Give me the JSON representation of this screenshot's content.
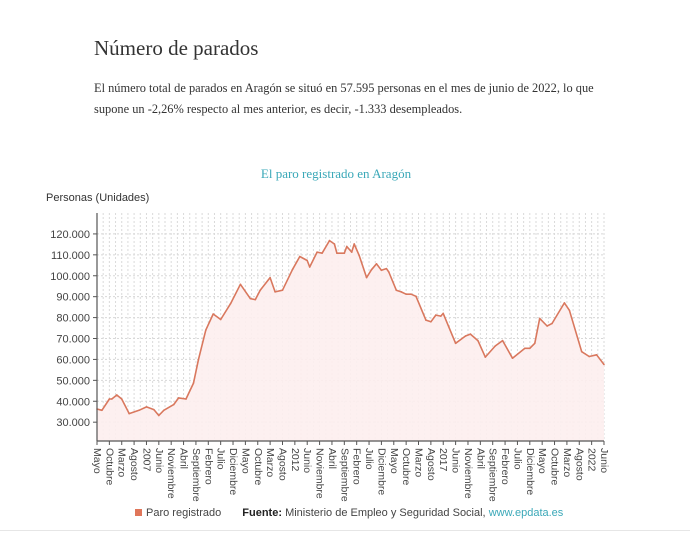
{
  "header": {
    "title": "Número de parados",
    "paragraph": "El número total de parados en Aragón se situó en 57.595 personas en el mes de junio de 2022, lo que supone un -2,26% respecto al mes anterior, es decir, -1.333 desempleados."
  },
  "footer": {
    "legend_label": "Paro registrado",
    "source_label": "Fuente:",
    "source_text": " Ministerio de Empleo y Seguridad Social, ",
    "source_link": "www.epdata.es"
  },
  "chart_data": {
    "type": "area",
    "title": "El paro registrado en Aragón",
    "ylabel": "Personas (Unidades)",
    "xlabel": "",
    "ylim": [
      21000,
      130000
    ],
    "yticks": [
      30000,
      40000,
      50000,
      60000,
      70000,
      80000,
      90000,
      100000,
      110000,
      120000
    ],
    "ytick_labels": [
      "30.000",
      "40.000",
      "50.000",
      "60.000",
      "70.000",
      "80.000",
      "90.000",
      "100.000",
      "110.000",
      "120.000"
    ],
    "xrange": [
      "2005-05",
      "2022-06"
    ],
    "xtick_step_months": 5,
    "xtick_labels": [
      "Mayo",
      "Octubre",
      "Marzo",
      "Agosto",
      "2007",
      "Junio",
      "Noviembre",
      "Abril",
      "Septiembre",
      "Febrero",
      "Julio",
      "Diciembre",
      "Mayo",
      "Octubre",
      "Marzo",
      "Agosto",
      "2012",
      "Junio",
      "Noviembre",
      "Abril",
      "Septiembre",
      "Febrero",
      "Julio",
      "Diciembre",
      "Mayo",
      "Octubre",
      "Marzo",
      "Agosto",
      "2017",
      "Junio",
      "Noviembre",
      "Abril",
      "Septiembre",
      "Febrero",
      "Julio",
      "Diciembre",
      "Mayo",
      "Octubre",
      "Marzo",
      "Agosto",
      "2022",
      "Junio"
    ],
    "grid": true,
    "legend_position": "bottom",
    "colors": {
      "line": "#d9785e",
      "fill": "#fdeeee",
      "title": "#3aa8b8"
    },
    "series": [
      {
        "name": "Paro registrado",
        "x": [
          "2005-05",
          "2005-07",
          "2005-10",
          "2005-11",
          "2006-01",
          "2006-03",
          "2006-06",
          "2006-10",
          "2007-01",
          "2007-04",
          "2007-06",
          "2007-08",
          "2007-12",
          "2008-02",
          "2008-05",
          "2008-08",
          "2008-10",
          "2009-01",
          "2009-04",
          "2009-07",
          "2009-11",
          "2010-03",
          "2010-07",
          "2010-09",
          "2010-11",
          "2011-03",
          "2011-05",
          "2011-08",
          "2011-12",
          "2012-03",
          "2012-06",
          "2012-07",
          "2012-10",
          "2012-12",
          "2013-03",
          "2013-05",
          "2013-06",
          "2013-09",
          "2013-10",
          "2013-12",
          "2014-01",
          "2014-03",
          "2014-06",
          "2014-08",
          "2014-10",
          "2014-12",
          "2015-02",
          "2015-03",
          "2015-06",
          "2015-08",
          "2015-10",
          "2015-12",
          "2016-02",
          "2016-06",
          "2016-08",
          "2016-10",
          "2016-12",
          "2017-01",
          "2017-06",
          "2017-10",
          "2017-12",
          "2018-03",
          "2018-06",
          "2018-10",
          "2019-01",
          "2019-05",
          "2019-10",
          "2019-12",
          "2020-02",
          "2020-04",
          "2020-07",
          "2020-09",
          "2021-02",
          "2021-04",
          "2021-09",
          "2021-12",
          "2022-03",
          "2022-06"
        ],
        "values": [
          36300,
          35700,
          41100,
          41100,
          43000,
          41100,
          34100,
          35700,
          37300,
          36000,
          33200,
          35700,
          38400,
          41600,
          41100,
          48700,
          59800,
          74000,
          81700,
          79100,
          86700,
          95900,
          89100,
          88600,
          93100,
          99100,
          92300,
          93100,
          102900,
          109200,
          107300,
          104200,
          111300,
          110800,
          116800,
          115200,
          110800,
          110800,
          114000,
          111300,
          115200,
          109700,
          99100,
          102900,
          105700,
          102600,
          103400,
          101800,
          93100,
          92300,
          91200,
          91200,
          90200,
          78800,
          78000,
          81200,
          80700,
          82000,
          67700,
          71200,
          72100,
          69000,
          61100,
          66400,
          69000,
          60600,
          65300,
          65300,
          67700,
          79600,
          76000,
          77200,
          87000,
          83500,
          63700,
          61400,
          62200,
          57595
        ]
      }
    ]
  }
}
